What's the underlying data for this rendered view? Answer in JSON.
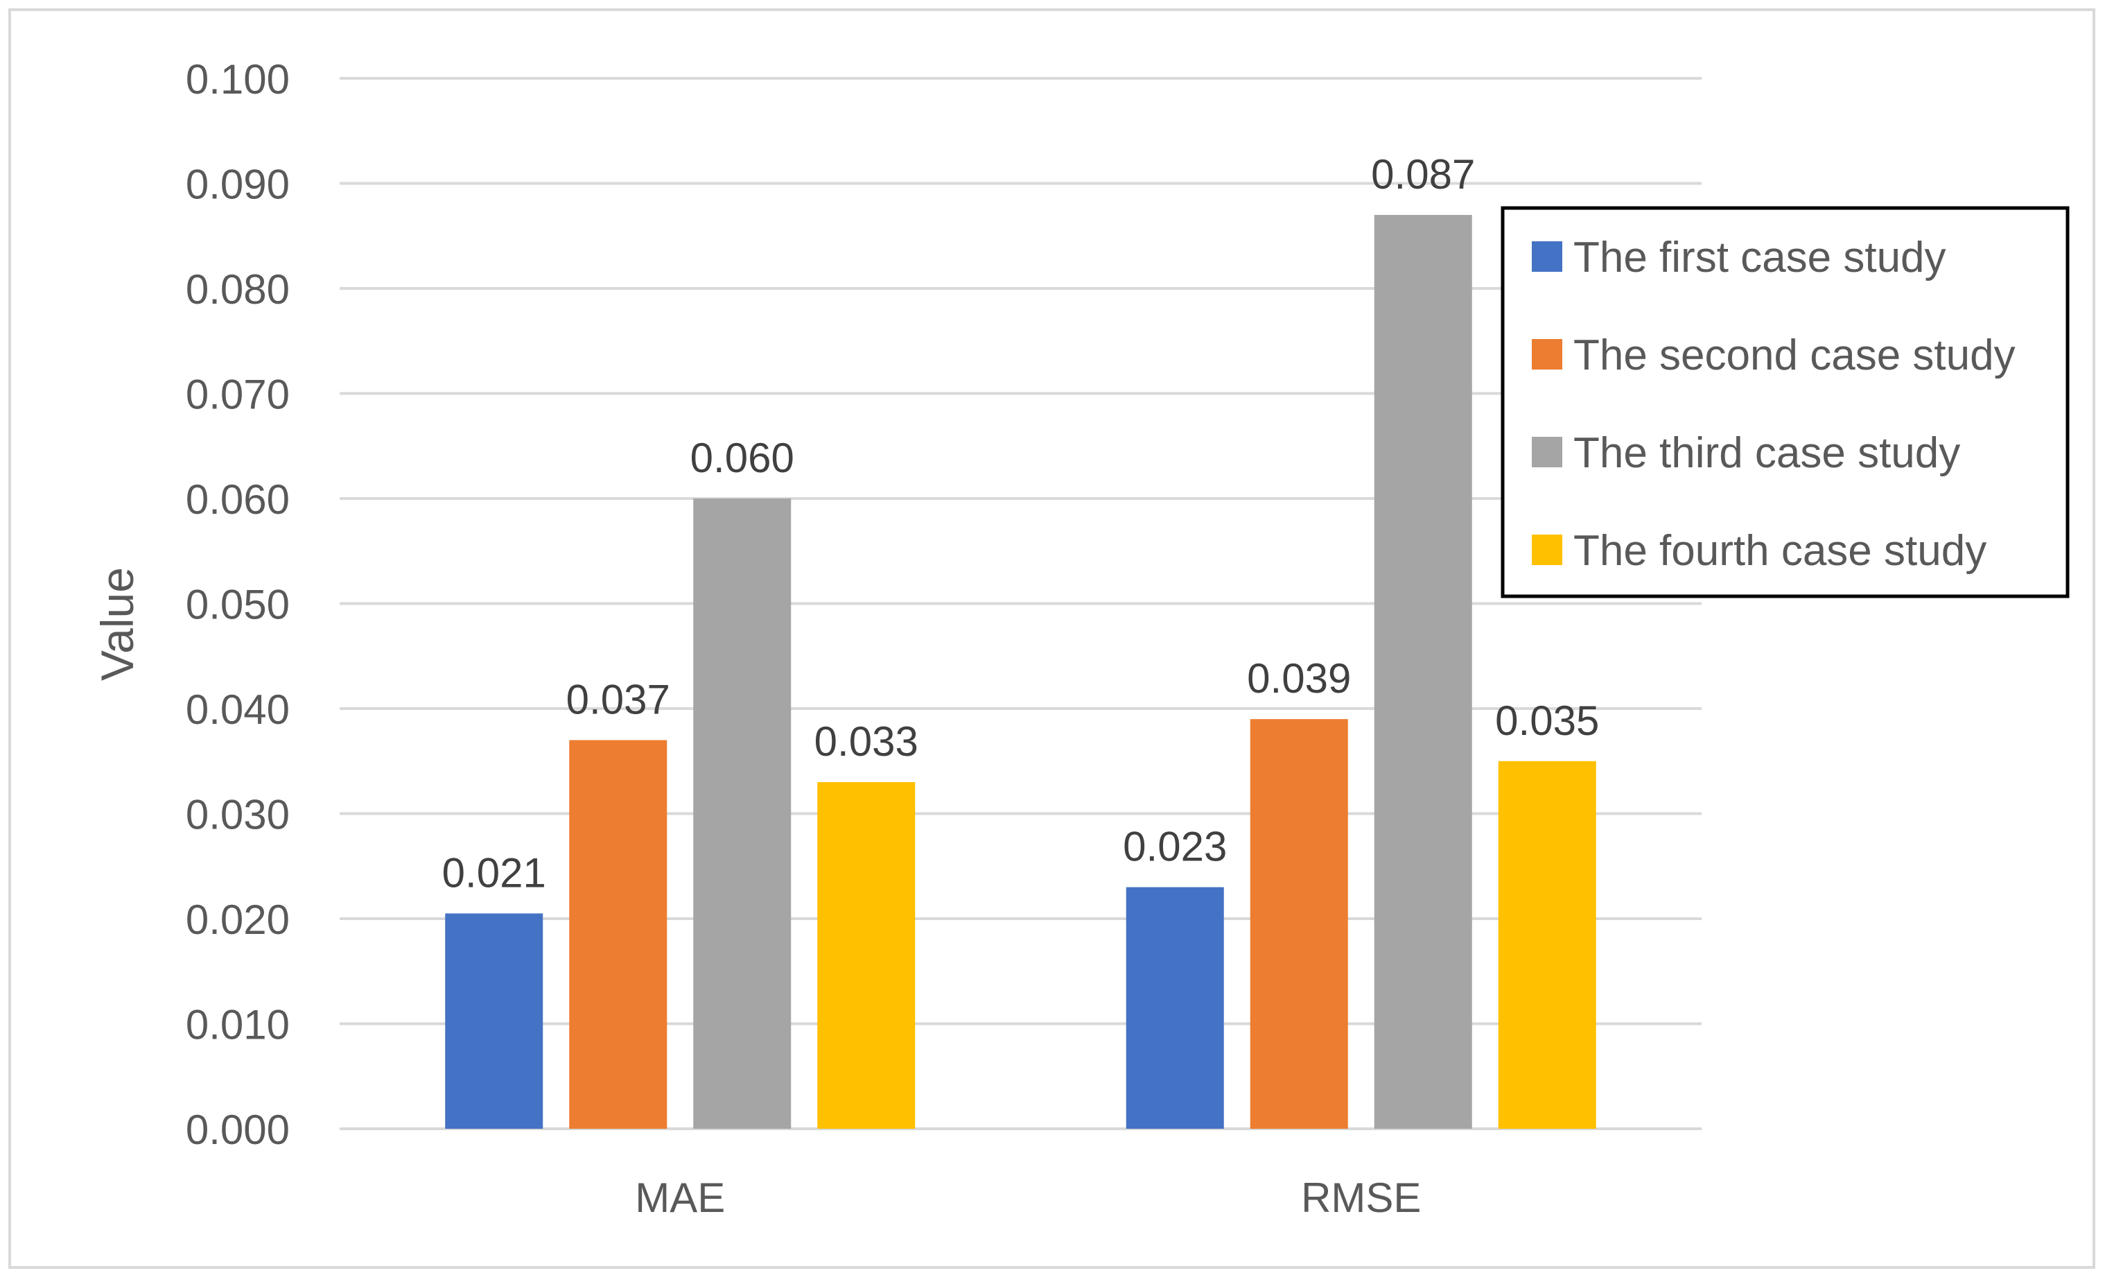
{
  "chart_data": {
    "type": "bar",
    "title": "",
    "xlabel": "",
    "ylabel": "Value",
    "ylim": [
      0,
      0.1
    ],
    "y_ticks": [
      "0.000",
      "0.010",
      "0.020",
      "0.030",
      "0.040",
      "0.050",
      "0.060",
      "0.070",
      "0.080",
      "0.090",
      "0.100"
    ],
    "grid": true,
    "legend_position": "top-right",
    "categories": [
      "MAE",
      "RMSE"
    ],
    "series": [
      {
        "name": "The first case study",
        "color": "#4472C4",
        "values": [
          0.0205,
          0.023
        ],
        "labels": [
          "0.021",
          "0.023"
        ]
      },
      {
        "name": "The second case study",
        "color": "#ED7D31",
        "values": [
          0.037,
          0.039
        ],
        "labels": [
          "0.037",
          "0.039"
        ]
      },
      {
        "name": "The third case study",
        "color": "#A5A5A5",
        "values": [
          0.06,
          0.087
        ],
        "labels": [
          "0.060",
          "0.087"
        ]
      },
      {
        "name": "The fourth case study",
        "color": "#FFC000",
        "values": [
          0.033,
          0.035
        ],
        "labels": [
          "0.033",
          "0.035"
        ]
      }
    ]
  }
}
